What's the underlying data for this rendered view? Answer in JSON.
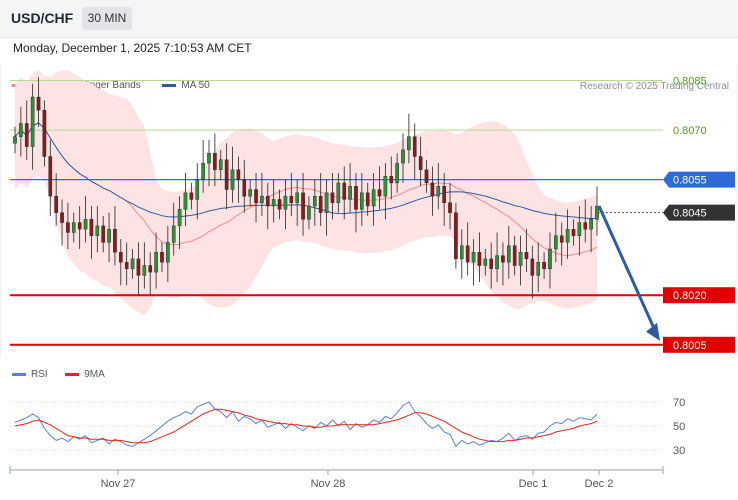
{
  "header": {
    "symbol": "USD/CHF",
    "timeframe": "30 MIN",
    "timestamp": "Monday, December 1, 2025 7:10:53 AM CET",
    "credit": "Research © 2025 Trading Central"
  },
  "legend": {
    "price": [
      {
        "label": "MA 20 + Bollinger Bands",
        "color": "#f28b8b"
      },
      {
        "label": "MA 50",
        "color": "#2e5c9e"
      }
    ],
    "rsi": [
      {
        "label": "RSI",
        "color": "#5b7fd6"
      },
      {
        "label": "9MA",
        "color": "#e8231f"
      }
    ]
  },
  "colors": {
    "bullish": "#2f8f3a",
    "bearish": "#8b1a1a",
    "bollinger_fill": "#fde3e3",
    "arrow": "#2e5c9e"
  },
  "chart_data": [
    {
      "type": "candlestick",
      "title": "USD/CHF 30 MIN",
      "x_labels": [
        "Nov 27",
        "Nov 28",
        "Dec 1",
        "Dec 2"
      ],
      "y_range": [
        0.8001,
        0.809
      ],
      "levels": [
        {
          "value": 0.8085,
          "label": "0.8085",
          "color": "#5ea820",
          "style": "thin",
          "kind": "text"
        },
        {
          "value": 0.807,
          "label": "0.8070",
          "color": "#5ea820",
          "style": "thin",
          "kind": "text"
        },
        {
          "value": 0.8055,
          "label": "0.8055",
          "color": "#2f6bd8",
          "style": "line",
          "kind": "tag"
        },
        {
          "value": 0.8045,
          "label": "0.8045",
          "color": "#333333",
          "style": "dotted",
          "kind": "tag"
        },
        {
          "value": 0.802,
          "label": "0.8020",
          "color": "#e00000",
          "style": "thick",
          "kind": "tag"
        },
        {
          "value": 0.8005,
          "label": "0.8005",
          "color": "#e00000",
          "style": "thick",
          "kind": "tag"
        }
      ],
      "closes": [
        0.8068,
        0.8072,
        0.8065,
        0.808,
        0.8076,
        0.8062,
        0.805,
        0.8045,
        0.8042,
        0.8039,
        0.8042,
        0.804,
        0.8043,
        0.8038,
        0.8041,
        0.8036,
        0.804,
        0.8033,
        0.803,
        0.8028,
        0.8031,
        0.8026,
        0.8029,
        0.8027,
        0.8033,
        0.803,
        0.8036,
        0.8041,
        0.8046,
        0.8051,
        0.8049,
        0.8055,
        0.806,
        0.8063,
        0.8058,
        0.8061,
        0.8052,
        0.8058,
        0.8055,
        0.805,
        0.8052,
        0.8048,
        0.805,
        0.8047,
        0.8049,
        0.8046,
        0.805,
        0.8048,
        0.8051,
        0.8043,
        0.8047,
        0.805,
        0.8045,
        0.8051,
        0.8048,
        0.8054,
        0.8049,
        0.8053,
        0.8046,
        0.8051,
        0.8047,
        0.8052,
        0.805,
        0.8056,
        0.8054,
        0.806,
        0.8064,
        0.8068,
        0.8062,
        0.8058,
        0.8054,
        0.805,
        0.8053,
        0.8048,
        0.8045,
        0.8031,
        0.8035,
        0.803,
        0.8033,
        0.8029,
        0.8031,
        0.8028,
        0.8032,
        0.803,
        0.8035,
        0.8029,
        0.8033,
        0.8031,
        0.8026,
        0.803,
        0.8028,
        0.8034,
        0.8038,
        0.8036,
        0.804,
        0.8038,
        0.8042,
        0.804,
        0.8043,
        0.8047
      ],
      "annotation": {
        "type": "arrow",
        "from": 0.8047,
        "to": 0.8005
      }
    },
    {
      "type": "line",
      "title": "RSI",
      "y_ticks": [
        70,
        50,
        30
      ],
      "series": [
        {
          "name": "RSI",
          "color": "#5b7fd6",
          "values": [
            53,
            55,
            57,
            60,
            57,
            48,
            42,
            38,
            40,
            37,
            41,
            39,
            42,
            36,
            38,
            40,
            35,
            39,
            37,
            34,
            33,
            36,
            39,
            42,
            46,
            50,
            54,
            57,
            59,
            62,
            60,
            66,
            68,
            70,
            64,
            62,
            57,
            62,
            54,
            58,
            56,
            52,
            55,
            49,
            51,
            53,
            48,
            52,
            49,
            46,
            50,
            48,
            53,
            50,
            55,
            50,
            54,
            47,
            52,
            49,
            51,
            55,
            53,
            58,
            56,
            61,
            67,
            70,
            62,
            58,
            52,
            48,
            51,
            45,
            43,
            33,
            38,
            35,
            37,
            34,
            36,
            38,
            37,
            40,
            44,
            38,
            41,
            42,
            39,
            44,
            45,
            50,
            53,
            52,
            56,
            54,
            57,
            56,
            55,
            60
          ]
        },
        {
          "name": "9MA",
          "color": "#e8231f",
          "values": [
            50,
            51,
            52,
            54,
            55,
            53,
            51,
            48,
            45,
            42,
            41,
            40,
            40,
            39,
            39,
            39,
            38,
            38,
            38,
            37,
            36,
            36,
            36,
            37,
            39,
            41,
            43,
            45,
            48,
            51,
            54,
            57,
            60,
            62,
            64,
            64,
            63,
            62,
            61,
            59,
            58,
            56,
            55,
            54,
            53,
            52,
            52,
            51,
            51,
            50,
            50,
            49,
            49,
            50,
            50,
            51,
            51,
            51,
            51,
            51,
            51,
            51,
            52,
            53,
            54,
            55,
            57,
            59,
            61,
            61,
            60,
            58,
            56,
            54,
            51,
            48,
            45,
            43,
            41,
            39,
            38,
            37,
            37,
            37,
            38,
            38,
            39,
            40,
            40,
            41,
            42,
            43,
            45,
            46,
            47,
            48,
            50,
            51,
            52,
            54
          ]
        }
      ]
    }
  ]
}
